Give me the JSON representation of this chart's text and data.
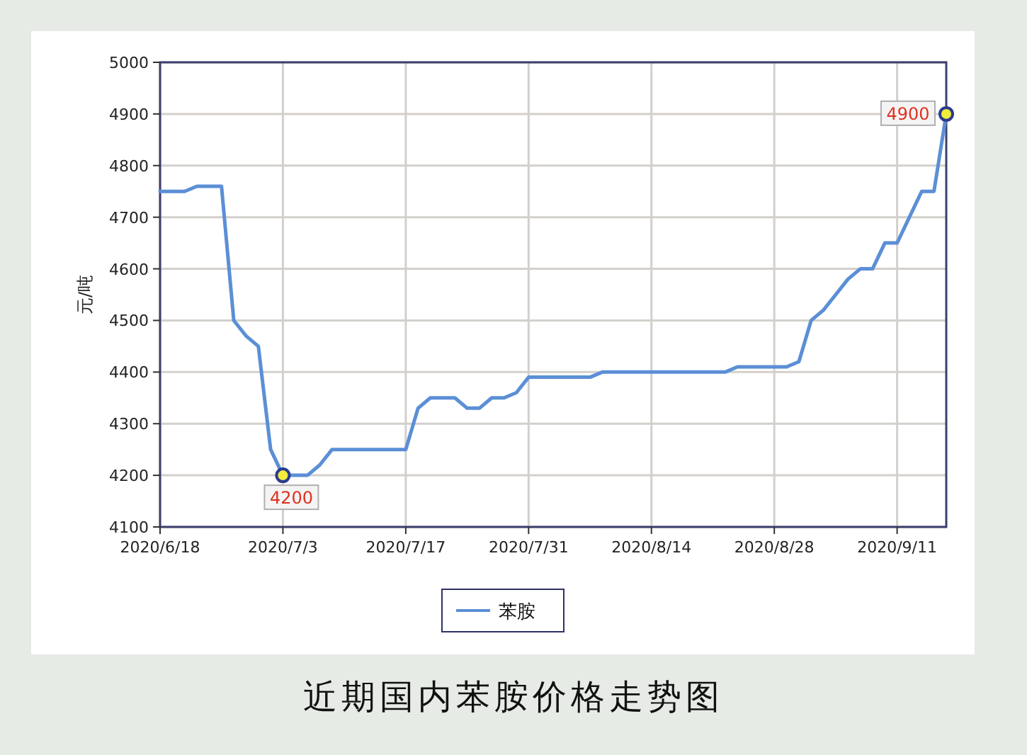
{
  "chart_data": {
    "type": "line",
    "title": "近期国内苯胺价格走势图",
    "ylabel": "元/吨",
    "categories": [
      "2020/6/18",
      null,
      null,
      null,
      null,
      null,
      null,
      null,
      null,
      null,
      "2020/7/3",
      null,
      null,
      null,
      null,
      null,
      null,
      null,
      null,
      null,
      "2020/7/17",
      null,
      null,
      null,
      null,
      null,
      null,
      null,
      null,
      null,
      "2020/7/31",
      null,
      null,
      null,
      null,
      null,
      null,
      null,
      null,
      null,
      "2020/8/14",
      null,
      null,
      null,
      null,
      null,
      null,
      null,
      null,
      null,
      "2020/8/28",
      null,
      null,
      null,
      null,
      null,
      null,
      null,
      null,
      null,
      "2020/9/11",
      null,
      null,
      null,
      null
    ],
    "series": [
      {
        "name": "苯胺",
        "color": "#5b8fd6",
        "values": [
          4750,
          4750,
          4750,
          4760,
          4760,
          4760,
          4500,
          4470,
          4450,
          4250,
          4200,
          4200,
          4200,
          4220,
          4250,
          4250,
          4250,
          4250,
          4250,
          4250,
          4250,
          4330,
          4350,
          4350,
          4350,
          4330,
          4330,
          4350,
          4350,
          4360,
          4390,
          4390,
          4390,
          4390,
          4390,
          4390,
          4400,
          4400,
          4400,
          4400,
          4400,
          4400,
          4400,
          4400,
          4400,
          4400,
          4400,
          4410,
          4410,
          4410,
          4410,
          4410,
          4420,
          4500,
          4520,
          4550,
          4580,
          4600,
          4600,
          4650,
          4650,
          4700,
          4750,
          4750,
          4900
        ],
        "value_labels": [
          null,
          null,
          null,
          null,
          null,
          null,
          null,
          null,
          null,
          null,
          "4200",
          null,
          null,
          null,
          null,
          null,
          null,
          null,
          null,
          null,
          null,
          null,
          null,
          null,
          null,
          null,
          null,
          null,
          null,
          null,
          null,
          null,
          null,
          null,
          null,
          null,
          null,
          null,
          null,
          null,
          null,
          null,
          null,
          null,
          null,
          null,
          null,
          null,
          null,
          null,
          null,
          null,
          null,
          null,
          null,
          null,
          null,
          null,
          null,
          null,
          null,
          null,
          null,
          null,
          "4900"
        ]
      }
    ],
    "ylim": [
      4100,
      5000
    ],
    "yticks": [
      4100,
      4200,
      4300,
      4400,
      4500,
      4600,
      4700,
      4800,
      4900,
      5000
    ],
    "grid": true,
    "legend": "bottom",
    "marker": "none",
    "line_style": "solid"
  }
}
